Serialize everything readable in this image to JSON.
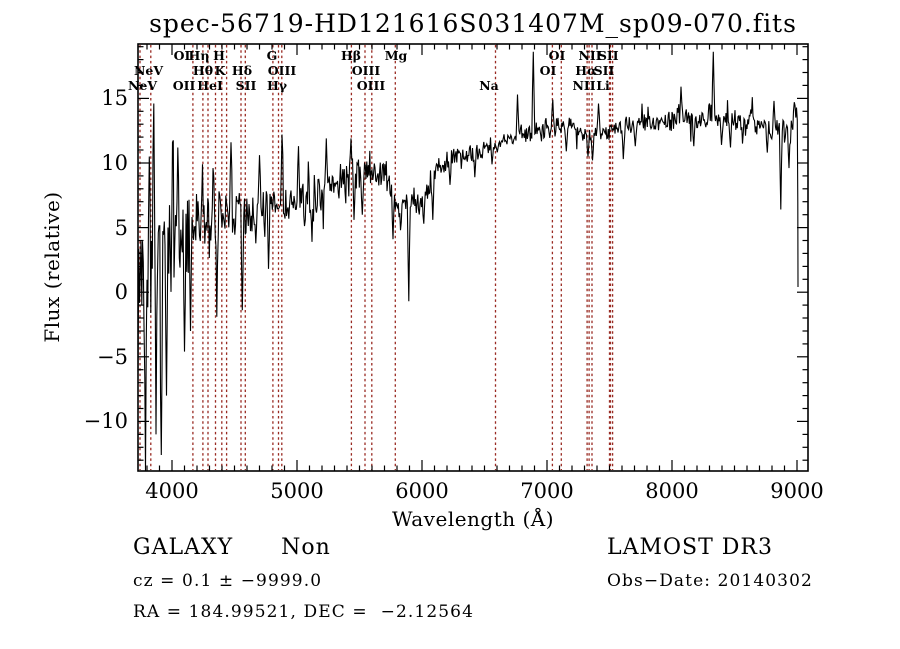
{
  "title": "spec-56719-HD121616S031407M_sp09-070.fits",
  "chart_data": {
    "type": "line",
    "title": "spec-56719-HD121616S031407M_sp09-070.fits",
    "xlabel": "Wavelength (Å)",
    "ylabel": "Flux (relative)",
    "xlim": [
      3728,
      9088
    ],
    "ylim": [
      -13.9,
      19.2
    ],
    "grid": false,
    "series_color": "#000000",
    "x_ticks": [
      4000,
      5000,
      6000,
      7000,
      8000,
      9000
    ],
    "x_tick_labels": [
      "4000",
      "5000",
      "6000",
      "7000",
      "8000",
      "9000"
    ],
    "x_minor_step": 100,
    "y_ticks": [
      -10,
      -5,
      0,
      5,
      10,
      15
    ],
    "y_tick_labels": [
      "−10",
      "−5",
      "0",
      "5",
      "10",
      "15"
    ],
    "y_minor_step": 1,
    "spectrum": {
      "description": "Noisy LAMOST galaxy spectrum: flux rises from ~2 (relative) at 3750 Å to ~13.5 near 8300 Å; very large noise excursions (±13) at the blue end; broad dip near 5800-6000 Å with a deep narrow spike to ~-0.7 at 5896 Å; tall narrow emission-like spikes near 6888 and 8330 Å reaching ~18.6; terminal plunge to ~0.4 at 9008 Å",
      "baseline": [
        [
          3728,
          1.5
        ],
        [
          3800,
          2.0
        ],
        [
          3900,
          2.6
        ],
        [
          4000,
          3.2
        ],
        [
          4100,
          4.0
        ],
        [
          4200,
          4.8
        ],
        [
          4300,
          5.3
        ],
        [
          4400,
          5.8
        ],
        [
          4500,
          6.1
        ],
        [
          4600,
          6.0
        ],
        [
          4700,
          6.3
        ],
        [
          4800,
          6.6
        ],
        [
          4900,
          6.6
        ],
        [
          5000,
          6.7
        ],
        [
          5100,
          7.2
        ],
        [
          5200,
          7.8
        ],
        [
          5300,
          8.4
        ],
        [
          5400,
          8.8
        ],
        [
          5500,
          9.1
        ],
        [
          5550,
          9.4
        ],
        [
          5600,
          9.3
        ],
        [
          5700,
          9.0
        ],
        [
          5750,
          8.0
        ],
        [
          5800,
          7.2
        ],
        [
          5900,
          6.9
        ],
        [
          6000,
          7.2
        ],
        [
          6050,
          8.3
        ],
        [
          6100,
          9.3
        ],
        [
          6150,
          9.8
        ],
        [
          6200,
          10.0
        ],
        [
          6300,
          10.3
        ],
        [
          6400,
          10.8
        ],
        [
          6500,
          11.2
        ],
        [
          6600,
          11.4
        ],
        [
          6700,
          11.9
        ],
        [
          6800,
          12.2
        ],
        [
          6900,
          12.5
        ],
        [
          7000,
          12.8
        ],
        [
          7100,
          12.7
        ],
        [
          7200,
          12.9
        ],
        [
          7300,
          12.4
        ],
        [
          7350,
          11.9
        ],
        [
          7400,
          12.6
        ],
        [
          7500,
          12.5
        ],
        [
          7600,
          12.7
        ],
        [
          7700,
          13.0
        ],
        [
          7800,
          13.2
        ],
        [
          7900,
          13.1
        ],
        [
          8000,
          13.3
        ],
        [
          8100,
          13.5
        ],
        [
          8200,
          13.4
        ],
        [
          8300,
          13.7
        ],
        [
          8400,
          13.5
        ],
        [
          8500,
          13.4
        ],
        [
          8600,
          13.1
        ],
        [
          8700,
          13.2
        ],
        [
          8800,
          12.7
        ],
        [
          8900,
          12.4
        ],
        [
          8950,
          12.9
        ],
        [
          9004,
          13.6
        ]
      ],
      "noise_amplitude": [
        [
          3728,
          5.5
        ],
        [
          3800,
          5.2
        ],
        [
          3860,
          4.8
        ],
        [
          3950,
          4.0
        ],
        [
          4050,
          3.2
        ],
        [
          4150,
          2.6
        ],
        [
          4250,
          2.3
        ],
        [
          4400,
          2.0
        ],
        [
          4600,
          1.7
        ],
        [
          4900,
          1.45
        ],
        [
          5200,
          1.3
        ],
        [
          5600,
          1.15
        ],
        [
          5900,
          1.0
        ],
        [
          6100,
          0.75
        ],
        [
          6500,
          0.65
        ],
        [
          7000,
          0.6
        ],
        [
          7500,
          0.6
        ],
        [
          8000,
          0.65
        ],
        [
          8500,
          0.7
        ],
        [
          8800,
          0.9
        ],
        [
          9008,
          1.0
        ]
      ],
      "spikes": [
        [
          3790,
          -13.85
        ],
        [
          3815,
          10.5
        ],
        [
          3852,
          14.6
        ],
        [
          3872,
          -11.0
        ],
        [
          3912,
          -12.6
        ],
        [
          3956,
          -8.0
        ],
        [
          4006,
          11.6
        ],
        [
          4046,
          11.2
        ],
        [
          4102,
          -4.6
        ],
        [
          4150,
          -3.0
        ],
        [
          4244,
          9.9
        ],
        [
          4330,
          9.6
        ],
        [
          4360,
          -1.9
        ],
        [
          4472,
          11.6
        ],
        [
          4562,
          -1.4
        ],
        [
          4700,
          10.6
        ],
        [
          4770,
          1.8
        ],
        [
          4880,
          12.2
        ],
        [
          5012,
          11.3
        ],
        [
          5120,
          3.9
        ],
        [
          5235,
          11.9
        ],
        [
          5432,
          11.9
        ],
        [
          5455,
          5.6
        ],
        [
          5524,
          6.0
        ],
        [
          5768,
          4.1
        ],
        [
          5830,
          4.8
        ],
        [
          5896,
          -0.7
        ],
        [
          6012,
          5.3
        ],
        [
          6086,
          5.6
        ],
        [
          6224,
          8.3
        ],
        [
          6420,
          8.9
        ],
        [
          6560,
          9.9
        ],
        [
          6764,
          15.3
        ],
        [
          6888,
          18.6
        ],
        [
          7044,
          14.9
        ],
        [
          7156,
          10.9
        ],
        [
          7330,
          10.5
        ],
        [
          7364,
          10.2
        ],
        [
          7412,
          14.6
        ],
        [
          7608,
          10.3
        ],
        [
          7704,
          11.3
        ],
        [
          8072,
          15.9
        ],
        [
          8172,
          11.3
        ],
        [
          8330,
          18.6
        ],
        [
          8394,
          11.4
        ],
        [
          8466,
          11.2
        ],
        [
          8564,
          11.5
        ],
        [
          8642,
          15.1
        ],
        [
          8762,
          10.8
        ],
        [
          8814,
          14.8
        ],
        [
          8872,
          6.4
        ],
        [
          8916,
          12.9
        ],
        [
          8938,
          9.6
        ],
        [
          8978,
          14.7
        ]
      ],
      "end": [
        [
          9006,
          7.0
        ],
        [
          9008,
          0.4
        ]
      ]
    },
    "spectral_lines": {
      "color": "#992a22",
      "wavelengths": [
        3744,
        3830,
        4167,
        4247,
        4288,
        4348,
        4398,
        4437,
        4552,
        4586,
        4807,
        4852,
        4878,
        5435,
        5544,
        5598,
        5786,
        6588,
        7043,
        7114,
        7321,
        7337,
        7360,
        7500,
        7508,
        7525
      ],
      "labels": [
        {
          "text": "OI",
          "row": 1,
          "wl": 4080
        },
        {
          "text": "Hη",
          "row": 1,
          "wl": 4216
        },
        {
          "text": "H",
          "row": 1,
          "wl": 4376
        },
        {
          "text": "G",
          "row": 1,
          "wl": 4800
        },
        {
          "text": "Hβ",
          "row": 1,
          "wl": 5432
        },
        {
          "text": "Mg",
          "row": 1,
          "wl": 5792
        },
        {
          "text": "OI",
          "row": 1,
          "wl": 7080
        },
        {
          "text": "NII",
          "row": 1,
          "wl": 7344
        },
        {
          "text": "SII",
          "row": 1,
          "wl": 7490
        },
        {
          "text": "NeV",
          "row": 2,
          "wl": 3812
        },
        {
          "text": "Hθ",
          "row": 2,
          "wl": 4248
        },
        {
          "text": "K",
          "row": 2,
          "wl": 4384
        },
        {
          "text": "Hδ",
          "row": 2,
          "wl": 4560
        },
        {
          "text": "OIII",
          "row": 2,
          "wl": 4880
        },
        {
          "text": "OIII",
          "row": 2,
          "wl": 5552
        },
        {
          "text": "OI",
          "row": 2,
          "wl": 7008
        },
        {
          "text": "Hα",
          "row": 2,
          "wl": 7312
        },
        {
          "text": "SII",
          "row": 2,
          "wl": 7456
        },
        {
          "text": "NeV",
          "row": 3,
          "wl": 3764
        },
        {
          "text": "OII",
          "row": 3,
          "wl": 4096
        },
        {
          "text": "HeI",
          "row": 3,
          "wl": 4304
        },
        {
          "text": "SII",
          "row": 3,
          "wl": 4592
        },
        {
          "text": "Hγ",
          "row": 3,
          "wl": 4840
        },
        {
          "text": "OIII",
          "row": 3,
          "wl": 5592
        },
        {
          "text": "Na",
          "row": 3,
          "wl": 6536
        },
        {
          "text": "NII",
          "row": 3,
          "wl": 7296
        },
        {
          "text": "Li",
          "row": 3,
          "wl": 7448
        }
      ]
    }
  },
  "annotations": {
    "class_label": "GALAXY      Non",
    "survey": "LAMOST DR3",
    "cz_line": "cz = 0.1 ± −9999.0",
    "obs_date": "Obs−Date: 20140302",
    "ra_dec": "RA = 184.99521, DEC =  −2.12564"
  }
}
